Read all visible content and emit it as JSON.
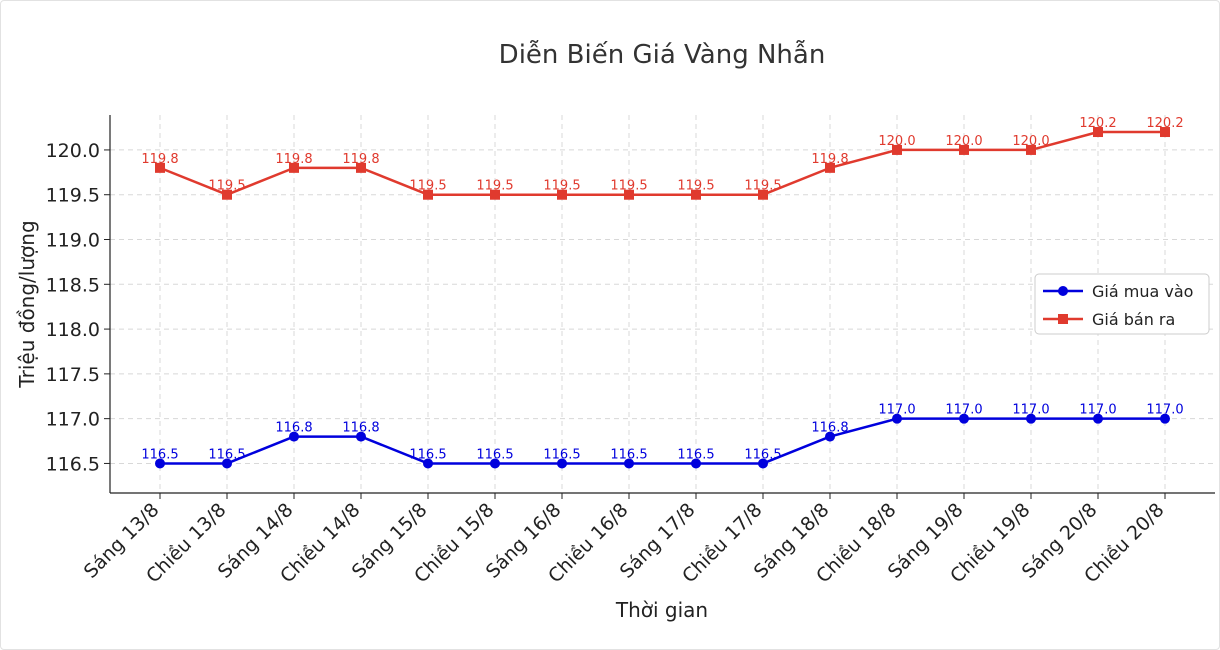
{
  "chart_data": {
    "type": "line",
    "title": "Diễn Biến Giá Vàng Nhẫn",
    "xlabel": "Thời gian",
    "ylabel": "Triệu đồng/lượng",
    "categories": [
      "Sáng 13/8",
      "Chiều 13/8",
      "Sáng 14/8",
      "Chiều 14/8",
      "Sáng 15/8",
      "Chiều 15/8",
      "Sáng 16/8",
      "Chiều 16/8",
      "Sáng 17/8",
      "Chiều 17/8",
      "Sáng 18/8",
      "Chiều 18/8",
      "Sáng 19/8",
      "Chiều 19/8",
      "Sáng 20/8",
      "Chiều 20/8"
    ],
    "series": [
      {
        "name": "Giá mua vào",
        "color": "#0000dd",
        "marker": "circle",
        "values": [
          116.5,
          116.5,
          116.8,
          116.8,
          116.5,
          116.5,
          116.5,
          116.5,
          116.5,
          116.5,
          116.8,
          117.0,
          117.0,
          117.0,
          117.0,
          117.0
        ]
      },
      {
        "name": "Giá bán ra",
        "color": "#e03a2e",
        "marker": "square",
        "values": [
          119.8,
          119.5,
          119.8,
          119.8,
          119.5,
          119.5,
          119.5,
          119.5,
          119.5,
          119.5,
          119.8,
          120.0,
          120.0,
          120.0,
          120.2,
          120.2
        ]
      }
    ],
    "yticks": [
      "116.5",
      "117.0",
      "117.5",
      "118.0",
      "118.5",
      "119.0",
      "119.5",
      "120.0"
    ],
    "ylim": [
      116.17,
      120.39
    ],
    "grid": true,
    "legend": "center-right"
  }
}
